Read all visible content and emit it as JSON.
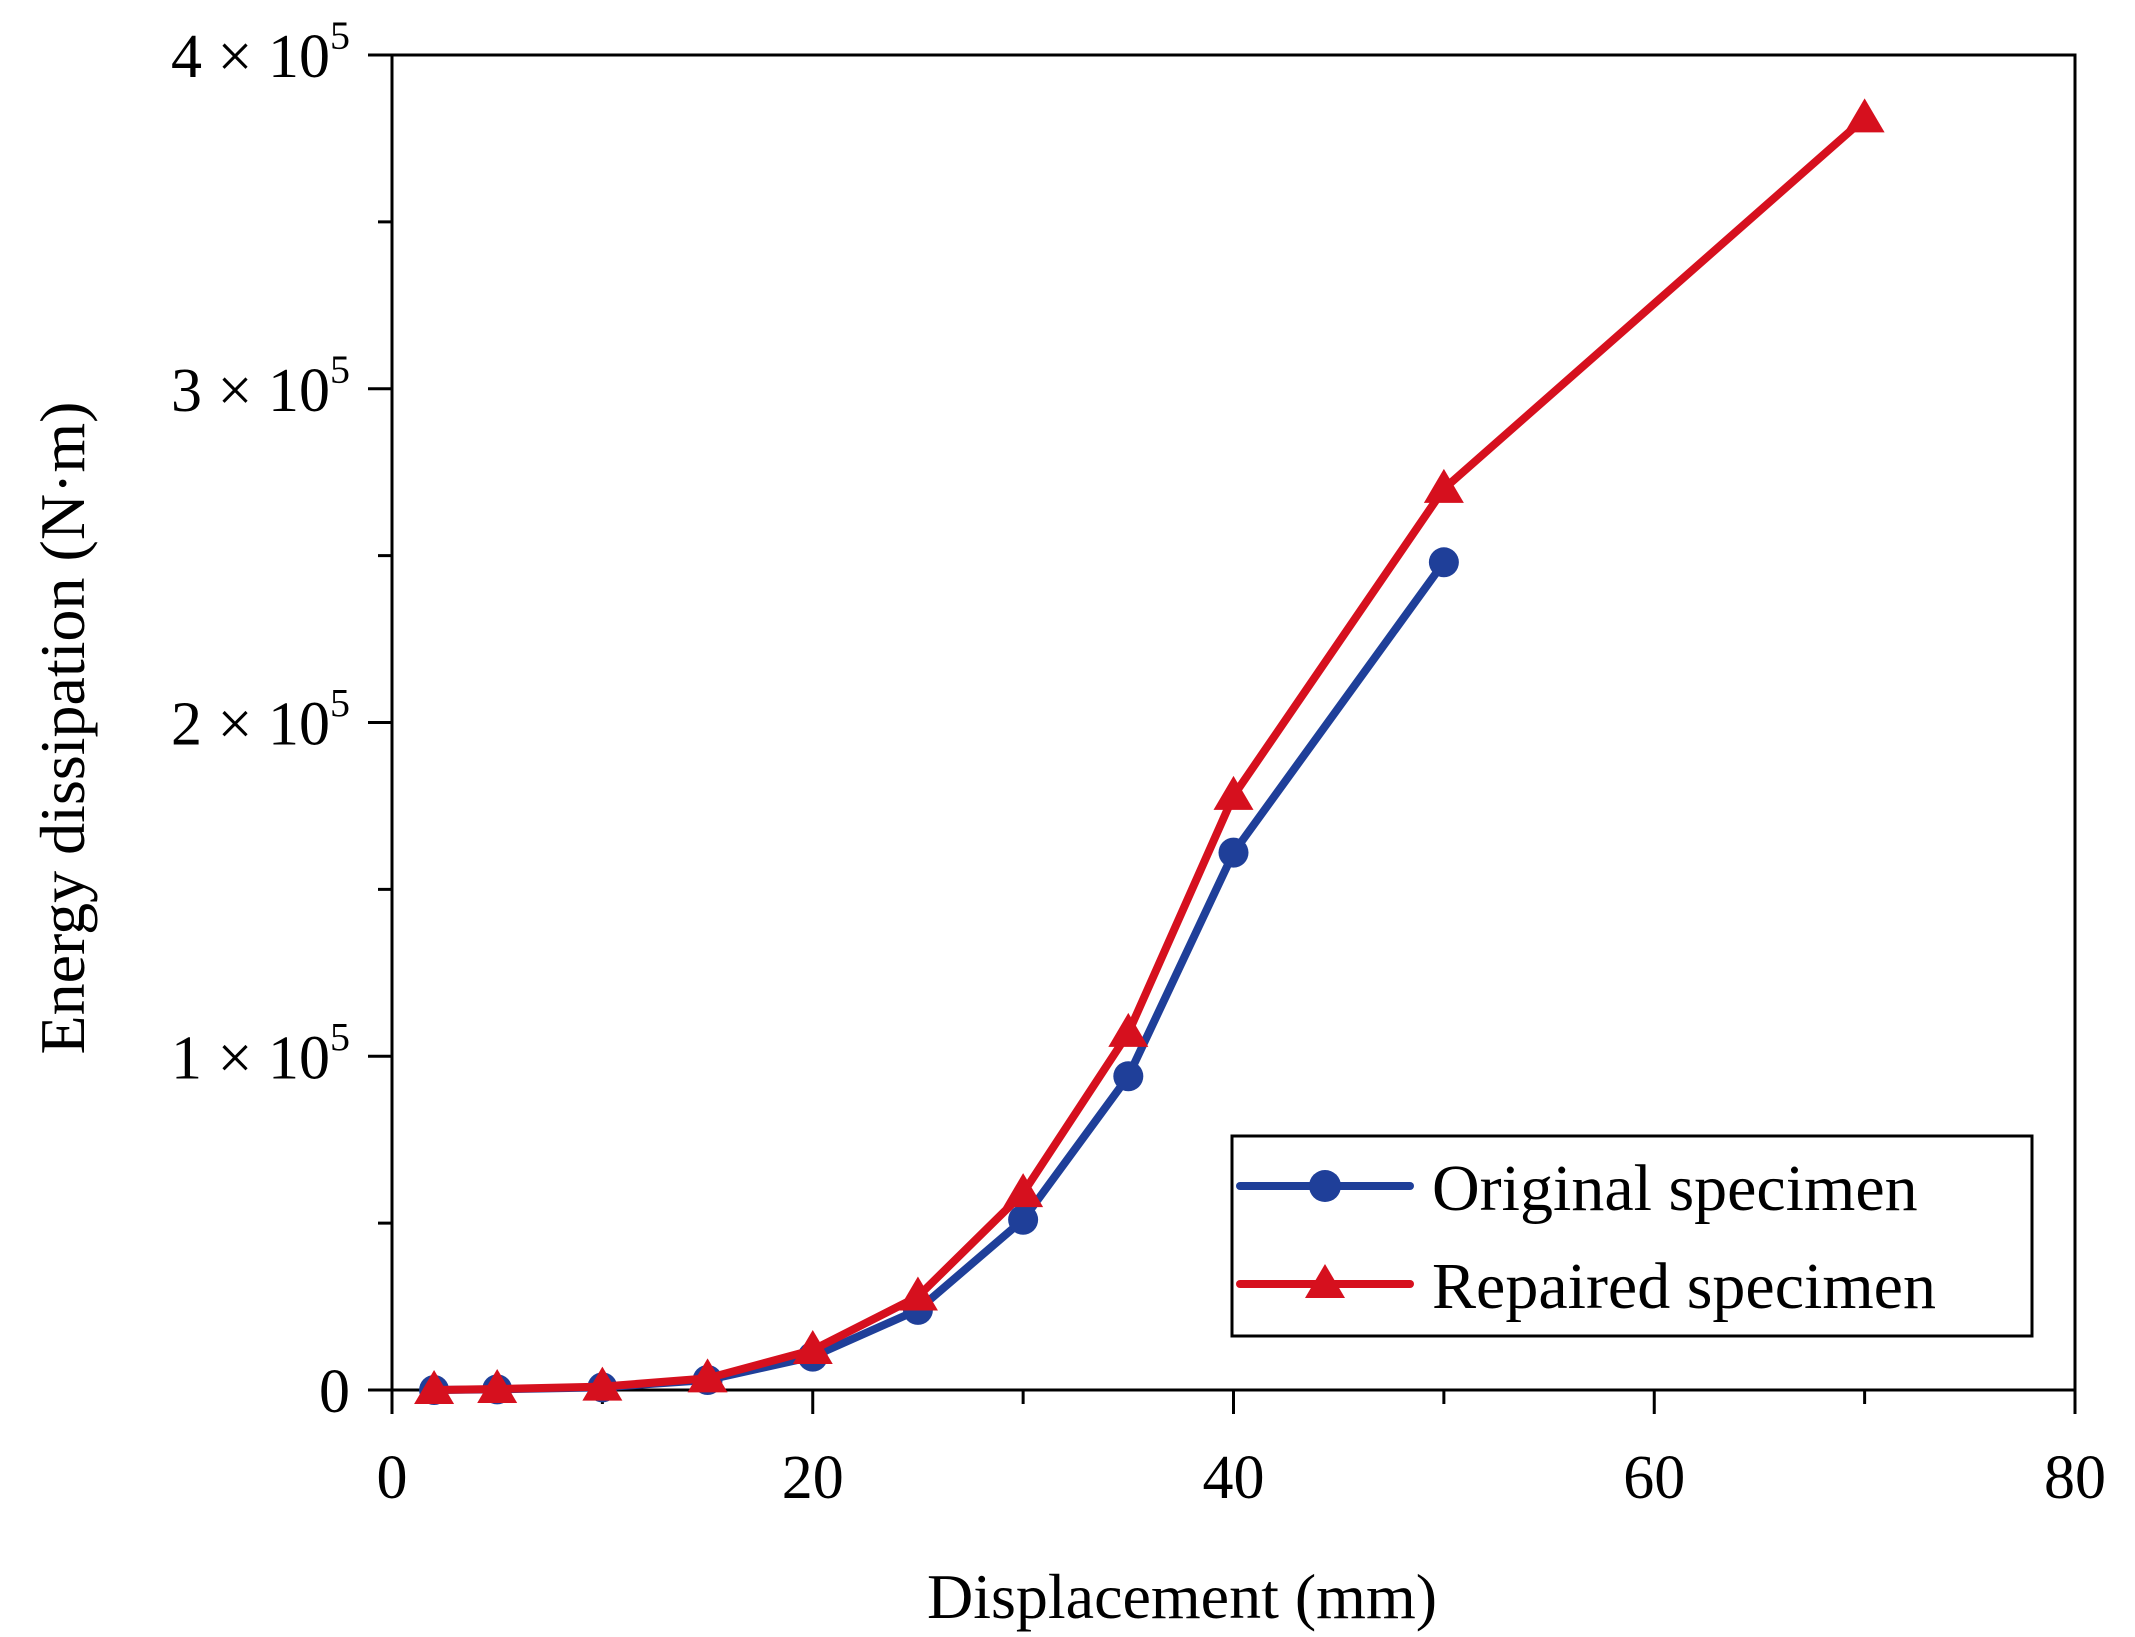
{
  "chart_data": {
    "type": "line",
    "xlabel": "Displacement (mm)",
    "ylabel": "Energy dissipation (N·m)",
    "xlim": [
      0,
      80
    ],
    "ylim": [
      0,
      400000
    ],
    "x_ticks": [
      0,
      20,
      40,
      60,
      80
    ],
    "x_tick_labels": [
      "0",
      "20",
      "40",
      "60",
      "80"
    ],
    "y_ticks": [
      0,
      100000,
      200000,
      300000,
      400000
    ],
    "y_tick_labels": [
      {
        "mantissa": "0",
        "exp": ""
      },
      {
        "mantissa": "1 × 10",
        "exp": "5"
      },
      {
        "mantissa": "2 × 10",
        "exp": "5"
      },
      {
        "mantissa": "3 × 10",
        "exp": "5"
      },
      {
        "mantissa": "4 × 10",
        "exp": "5"
      }
    ],
    "legend_position": "bottom-right",
    "grid": false,
    "series": [
      {
        "name": "Original specimen",
        "color": "#1f3f99",
        "marker": "circle",
        "x": [
          2,
          5,
          10,
          15,
          20,
          25,
          30,
          35,
          40,
          50
        ],
        "y": [
          0,
          200,
          800,
          3000,
          10000,
          24000,
          51000,
          94000,
          161000,
          248000
        ]
      },
      {
        "name": "Repaired specimen",
        "color": "#d6101e",
        "marker": "triangle",
        "x": [
          2,
          5,
          10,
          15,
          20,
          25,
          30,
          35,
          40,
          50,
          70
        ],
        "y": [
          0,
          300,
          1000,
          3500,
          12000,
          28000,
          59000,
          107000,
          178000,
          270000,
          381000
        ]
      }
    ]
  }
}
